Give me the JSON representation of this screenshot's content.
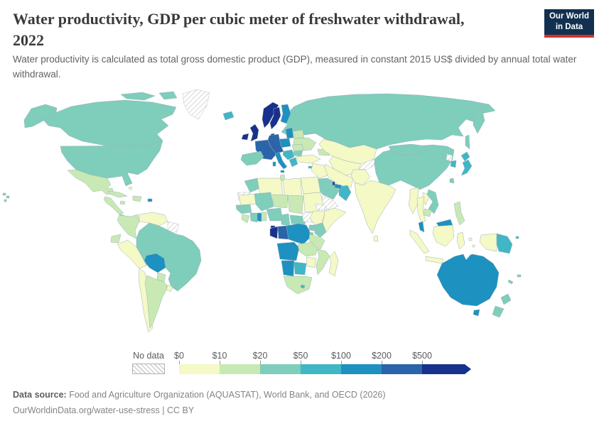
{
  "header": {
    "title_line1": "Water productivity, GDP per cubic meter of freshwater withdrawal,",
    "title_line2": "2022",
    "subtitle": "Water productivity is calculated as total gross domestic product (GDP), measured in constant 2015 US$ divided by annual total water withdrawal."
  },
  "logo": {
    "line1": "Our World",
    "line2": "in Data",
    "bg_color": "#12304f",
    "accent_color": "#d1342b"
  },
  "legend": {
    "no_data_label": "No data",
    "tick_labels": [
      "$0",
      "$10",
      "$20",
      "$50",
      "$100",
      "$200",
      "$500"
    ],
    "bin_colors": [
      "#f4f9c5",
      "#c8e9b3",
      "#7fcdbb",
      "#41b6c4",
      "#1d91c0",
      "#2b64a9",
      "#17318c"
    ]
  },
  "footer": {
    "source_label": "Data source:",
    "source_text": " Food and Agriculture Organization (AQUASTAT), World Bank, and OECD (2026)",
    "link_line": "OurWorldinData.org/water-use-stress | CC BY"
  },
  "chart_data": {
    "type": "choropleth_map",
    "title": "Water productivity, GDP per cubic meter of freshwater withdrawal, 2022",
    "unit_note": "GDP (constant 2015 US$) per cubic meter of annual freshwater withdrawal",
    "legend_bins": [
      {
        "range": "$0–$10",
        "color": "#f4f9c5"
      },
      {
        "range": "$10–$20",
        "color": "#c8e9b3"
      },
      {
        "range": "$20–$50",
        "color": "#7fcdbb"
      },
      {
        "range": "$50–$100",
        "color": "#41b6c4"
      },
      {
        "range": "$100–$200",
        "color": "#1d91c0"
      },
      {
        "range": "$200–$500",
        "color": "#2b64a9"
      },
      {
        "range": "$500+",
        "color": "#17318c"
      }
    ],
    "no_data": {
      "label": "No data",
      "style": "hatched"
    },
    "regions": {
      "russia": 2,
      "canada": 2,
      "alaska": 2,
      "united-states": 2,
      "hawaii": 2,
      "greenland": "no-data",
      "iceland": 3,
      "mexico": 1,
      "belize": 2,
      "guatemala-nicaragua": 1,
      "costa-rica": 2,
      "panama": 4,
      "cuba": 1,
      "jamaica": 1,
      "hispaniola": 1,
      "puerto-rico": 4,
      "bahamas": 0,
      "trinidad": 4,
      "colombia": 1,
      "venezuela": 0,
      "guyana-suriname": "no-data",
      "ecuador": 1,
      "peru": 0,
      "brazil": 2,
      "bolivia": 4,
      "paraguay": 1,
      "uruguay": 0,
      "chile": 0,
      "argentina": 1,
      "united-kingdom": 6,
      "ireland": 6,
      "norway": 6,
      "sweden": 6,
      "denmark": 6,
      "finland": 4,
      "baltics": 4,
      "poland": 4,
      "germany-central-europe": 5,
      "france": 5,
      "iberia": 2,
      "italy": 4,
      "balkans": 3,
      "romania": 1,
      "bulgaria": 2,
      "greece": 3,
      "belarus": 1,
      "ukraine": 1,
      "turkey": 0,
      "cyprus": 3,
      "caucasus": 1,
      "kazakhstan": 0,
      "central-asia": 0,
      "kyrgyz-tajik": "no-data",
      "iran": 0,
      "iraq-syria": 0,
      "israel": 6,
      "saudi-arabia": 2,
      "yemen": "no-data",
      "oman": 3,
      "uae": 4,
      "qatar": 6,
      "afghanistan-pakistan": 0,
      "india": 0,
      "sri-lanka": 0,
      "china": 2,
      "mongolia": 2,
      "taiwan": 2,
      "north-korea": "no-data",
      "south-korea": 3,
      "japan": 3,
      "myanmar": 0,
      "thailand": 0,
      "laos": 0,
      "vietnam": 2,
      "cambodia": 1,
      "malaysia": 4,
      "indonesia": 0,
      "philippines": 1,
      "papua-new-guinea": 3,
      "australia": 4,
      "new-zealand": 2,
      "fiji": 2,
      "new-caledonia": 2,
      "morocco": 2,
      "western-sahara": "no-data",
      "algeria": 0,
      "tunisia": 1,
      "libya": 0,
      "egypt": 0,
      "mauritania": 0,
      "mali": 2,
      "niger": 1,
      "chad": 1,
      "sudan": 0,
      "senegal-guinea": 2,
      "sierra-leone-liberia": 1,
      "cote-divoire": 2,
      "ghana": 4,
      "togo-benin": 1,
      "nigeria": 2,
      "cameroon": 2,
      "central-african-republic": 2,
      "south-sudan": "no-data",
      "eritrea": "no-data",
      "djibouti": 6,
      "ethiopia": 0,
      "somalia": 0,
      "kenya": 2,
      "uganda": 2,
      "rwanda-burundi": 2,
      "tanzania": 1,
      "equatorial-guinea": 6,
      "gabon": 6,
      "congo": 5,
      "dr-congo": 4,
      "angola": 4,
      "zambia": 1,
      "malawi-mozambique": 1,
      "zimbabwe": 0,
      "namibia": 4,
      "botswana": 3,
      "south-africa": 1,
      "lesotho": 3,
      "madagascar": 0
    }
  }
}
